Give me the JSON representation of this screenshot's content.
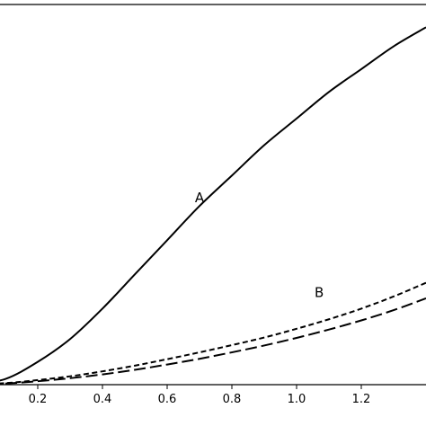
{
  "chart_data": {
    "type": "line",
    "title": "",
    "xlabel": "",
    "ylabel": "",
    "xlim": [
      0.0,
      1.4
    ],
    "ylim": [
      0.0,
      1.0
    ],
    "grid": false,
    "x_ticks": [
      {
        "value": 0.2,
        "label": "0.2"
      },
      {
        "value": 0.4,
        "label": "0.4"
      },
      {
        "value": 0.6,
        "label": "0.6"
      },
      {
        "value": 0.8,
        "label": "0.8"
      },
      {
        "value": 1.0,
        "label": "1.0"
      },
      {
        "value": 1.2,
        "label": "1.2"
      }
    ],
    "series": [
      {
        "name": "A",
        "line_style": "solid",
        "color": "#000000",
        "label_anchor": {
          "x": 0.7,
          "y": 0.48
        },
        "x": [
          0.0,
          0.1,
          0.2,
          0.3,
          0.4,
          0.5,
          0.6,
          0.7,
          0.8,
          0.9,
          1.0,
          1.1,
          1.2,
          1.3,
          1.4
        ],
        "y": [
          0.0,
          0.015,
          0.06,
          0.12,
          0.2,
          0.29,
          0.38,
          0.47,
          0.55,
          0.63,
          0.7,
          0.77,
          0.83,
          0.89,
          0.94
        ]
      },
      {
        "name": "B",
        "line_style": "dashed",
        "color": "#000000",
        "label_anchor": {
          "x": 1.07,
          "y": 0.23
        },
        "x": [
          0.0,
          0.1,
          0.2,
          0.3,
          0.4,
          0.5,
          0.6,
          0.7,
          0.8,
          0.9,
          1.0,
          1.1,
          1.2,
          1.3,
          1.4
        ],
        "y": [
          0.0,
          0.004,
          0.012,
          0.022,
          0.035,
          0.05,
          0.067,
          0.085,
          0.104,
          0.124,
          0.147,
          0.172,
          0.2,
          0.232,
          0.268
        ]
      },
      {
        "name": "",
        "line_style": "long-dashed",
        "color": "#000000",
        "x": [
          0.0,
          0.1,
          0.2,
          0.3,
          0.4,
          0.5,
          0.6,
          0.7,
          0.8,
          0.9,
          1.0,
          1.1,
          1.2,
          1.3,
          1.4
        ],
        "y": [
          0.0,
          0.003,
          0.009,
          0.017,
          0.027,
          0.039,
          0.053,
          0.068,
          0.085,
          0.103,
          0.123,
          0.145,
          0.169,
          0.196,
          0.227
        ]
      }
    ]
  }
}
